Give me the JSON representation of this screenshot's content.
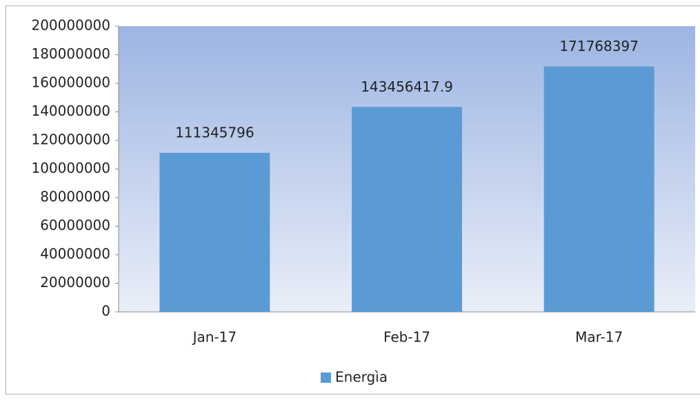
{
  "chart_data": {
    "type": "bar",
    "categories": [
      "Jan-17",
      "Feb-17",
      "Mar-17"
    ],
    "series": [
      {
        "name": "Energìa",
        "color": "#5b9bd5",
        "values": [
          111345796,
          143456417.9,
          171768397
        ]
      }
    ],
    "ylim": [
      0,
      200000000
    ],
    "yticks": [
      0,
      20000000,
      40000000,
      60000000,
      80000000,
      100000000,
      120000000,
      140000000,
      160000000,
      180000000,
      200000000
    ],
    "legend": "bottom",
    "data_labels": true
  }
}
